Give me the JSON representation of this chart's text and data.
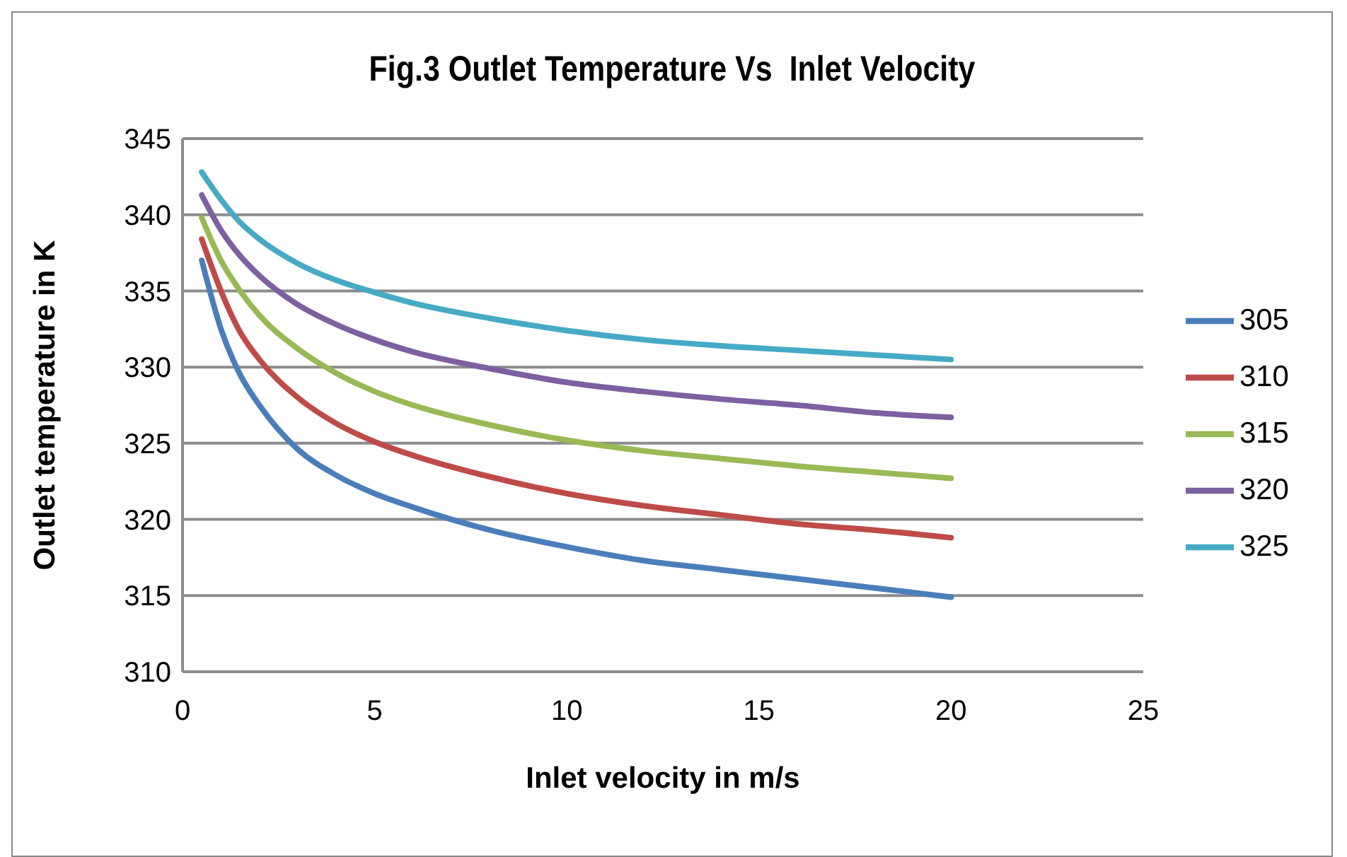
{
  "chart_data": {
    "type": "line",
    "title": "Fig.3 Outlet Temperature Vs  Inlet Velocity",
    "xlabel": "Inlet velocity  in m/s",
    "ylabel": "Outlet temperature in K",
    "x": [
      0.5,
      1,
      1.5,
      2,
      3,
      4,
      5,
      6,
      8,
      10,
      12,
      14,
      16,
      18,
      20
    ],
    "series": [
      {
        "name": "305",
        "color": "#4a7ebb",
        "values": [
          337,
          332.5,
          329.5,
          327.5,
          324.6,
          322.9,
          321.7,
          320.8,
          319.3,
          318.2,
          317.3,
          316.7,
          316.1,
          315.5,
          314.9
        ]
      },
      {
        "name": "310",
        "color": "#be4b48",
        "values": [
          338.4,
          335,
          332.3,
          330.5,
          328,
          326.3,
          325.1,
          324.2,
          322.8,
          321.7,
          320.9,
          320.3,
          319.7,
          319.3,
          318.8
        ]
      },
      {
        "name": "315",
        "color": "#98b954",
        "values": [
          339.8,
          337,
          335,
          333.4,
          331.2,
          329.6,
          328.4,
          327.5,
          326.2,
          325.2,
          324.5,
          324,
          323.5,
          323.1,
          322.7
        ]
      },
      {
        "name": "320",
        "color": "#7d60a0",
        "values": [
          341.3,
          339,
          337.3,
          336,
          334.1,
          332.8,
          331.8,
          331,
          329.9,
          329,
          328.4,
          327.9,
          327.5,
          327,
          326.7
        ]
      },
      {
        "name": "325",
        "color": "#46aac5",
        "values": [
          342.8,
          341,
          339.5,
          338.4,
          336.8,
          335.7,
          334.9,
          334.2,
          333.2,
          332.4,
          331.8,
          331.4,
          331.1,
          330.8,
          330.5
        ]
      }
    ],
    "xlim": [
      0,
      25
    ],
    "xticks": [
      0,
      5,
      10,
      15,
      20,
      25
    ],
    "ylim": [
      310,
      345
    ],
    "yticks": [
      310,
      315,
      320,
      325,
      330,
      335,
      340,
      345
    ],
    "grid": "y",
    "legend": "right",
    "marker": "none",
    "line_style": "solid"
  }
}
